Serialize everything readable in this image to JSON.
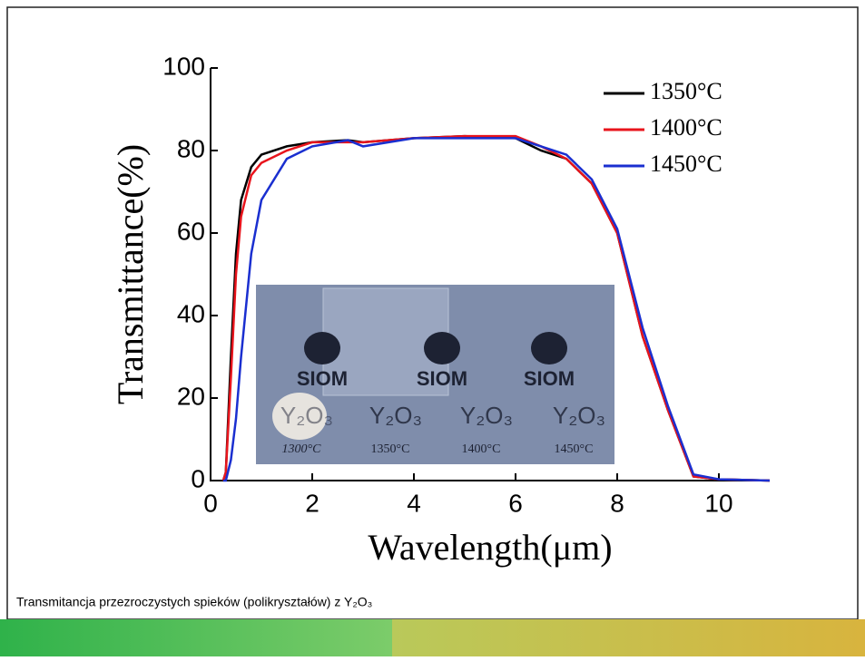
{
  "chart_data": {
    "type": "line",
    "xlabel": "Wavelength(μm)",
    "ylabel": "Transmittance(%)",
    "x": [
      0.25,
      0.3,
      0.4,
      0.5,
      0.6,
      0.8,
      1,
      1.5,
      2,
      2.7,
      3,
      4,
      5,
      6,
      6.5,
      7,
      7.5,
      8,
      8.5,
      9,
      9.5,
      10,
      11
    ],
    "series": [
      {
        "name": "1350°C",
        "color": "#000000",
        "values": [
          0,
          2,
          30,
          55,
          68,
          76,
          79,
          81,
          82,
          82.5,
          82,
          83,
          83.5,
          83,
          80,
          78,
          72,
          60,
          35,
          17,
          1,
          0.3,
          0
        ]
      },
      {
        "name": "1400°C",
        "color": "#e8141c",
        "values": [
          0,
          2,
          25,
          50,
          64,
          74,
          77,
          80,
          82,
          82,
          82,
          83,
          83.5,
          83.5,
          81,
          78,
          72,
          60,
          35,
          17,
          1,
          0.3,
          0
        ]
      },
      {
        "name": "1450°C",
        "color": "#1a2fd0",
        "values": [
          0,
          0,
          5,
          15,
          30,
          55,
          68,
          78,
          81,
          82.5,
          81,
          83,
          83,
          83,
          81,
          79,
          73,
          61,
          37,
          18,
          1.5,
          0.3,
          0
        ]
      }
    ],
    "xlim": [
      0,
      11
    ],
    "xticks": [
      0,
      2,
      4,
      6,
      8,
      10
    ],
    "ylim": [
      0,
      100
    ],
    "yticks": [
      0,
      20,
      40,
      60,
      80,
      100
    ],
    "legend": "upper right",
    "inset": {
      "logos": [
        "SIOM",
        "SIOM",
        "SIOM"
      ],
      "samples": [
        "Y₂O₃",
        "Y₂O₃",
        "Y₂O₃",
        "Y₂O₃"
      ],
      "temperatures": [
        "1300°C",
        "1350°C",
        "1400°C",
        "1450°C"
      ]
    }
  },
  "caption": "Transmitancja przezroczystych spieków (polikryształów) z Y₂O₃"
}
